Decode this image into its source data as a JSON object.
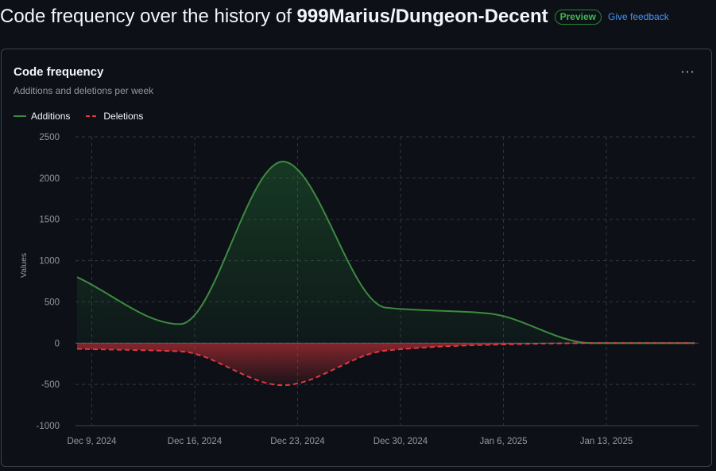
{
  "header": {
    "title_prefix": "Code frequency over the history of",
    "repo": "999Marius/Dungeon-Decent",
    "badge": "Preview",
    "feedback": "Give feedback"
  },
  "card": {
    "title": "Code frequency",
    "subtitle": "Additions and deletions per week",
    "menu_icon": "kebab-horizontal-icon"
  },
  "colors": {
    "additions": "#3c8b3f",
    "deletions": "#e5363f",
    "grid": "#30363d"
  },
  "chart_data": {
    "type": "area",
    "ylabel": "Values",
    "ylim": [
      -1000,
      2500
    ],
    "yticks": [
      2500,
      2000,
      1500,
      1000,
      500,
      0,
      -500,
      -1000
    ],
    "xticks": [
      "Dec 9, 2024",
      "Dec 16, 2024",
      "Dec 23, 2024",
      "Dec 30, 2024",
      "Jan 6, 2025",
      "Jan 13, 2025"
    ],
    "x": [
      "2024-12-08",
      "2024-12-15",
      "2024-12-22",
      "2024-12-29",
      "2025-01-05",
      "2025-01-12",
      "2025-01-19"
    ],
    "grid": true,
    "legend_position": "top-left",
    "series": [
      {
        "name": "Additions",
        "values": [
          800,
          230,
          2200,
          430,
          360,
          0,
          0
        ]
      },
      {
        "name": "Deletions",
        "values": [
          -70,
          -100,
          -510,
          -90,
          -20,
          0,
          0
        ]
      }
    ]
  }
}
